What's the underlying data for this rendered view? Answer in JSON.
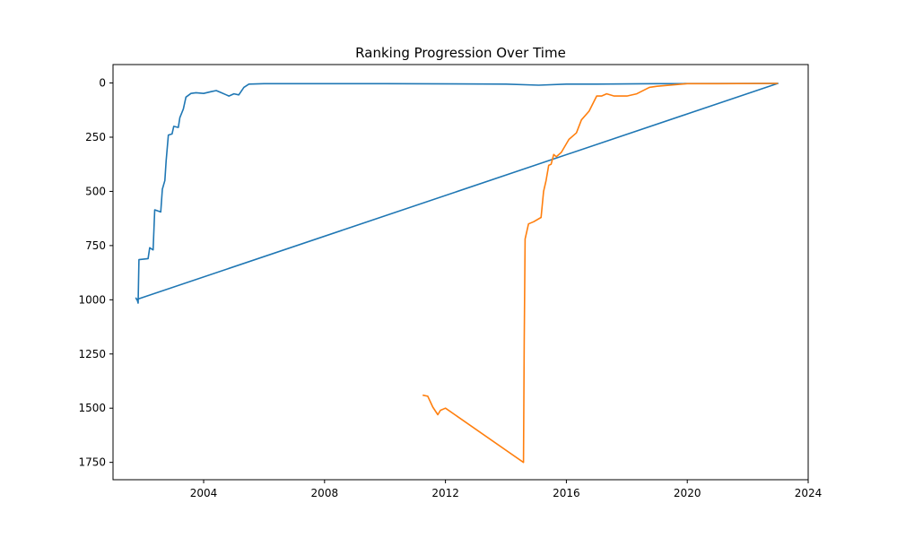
{
  "chart_data": {
    "type": "line",
    "title": "Ranking Progression Over Time",
    "xlabel": "",
    "ylabel": "",
    "x_type": "date",
    "xlim": [
      "2001-01-01",
      "2024-01-01"
    ],
    "ylim": [
      1830,
      -85
    ],
    "y_inverted": true,
    "x_ticks": [
      "2004-01-01",
      "2008-01-01",
      "2012-01-01",
      "2016-01-01",
      "2020-01-01",
      "2024-01-01"
    ],
    "x_tick_labels": [
      "2004",
      "2008",
      "2012",
      "2016",
      "2020",
      "2024"
    ],
    "y_ticks": [
      0,
      250,
      500,
      750,
      1000,
      1250,
      1500,
      1750
    ],
    "y_tick_labels": [
      "0",
      "250",
      "500",
      "750",
      "1000",
      "1250",
      "1500",
      "1750"
    ],
    "grid": false,
    "legend": "none",
    "series": [
      {
        "color": "#1f77b4",
        "points": [
          [
            "2001-10-01",
            990
          ],
          [
            "2001-10-20",
            1000
          ],
          [
            "2001-11-01",
            1015
          ],
          [
            "2001-11-10",
            815
          ],
          [
            "2002-03-01",
            810
          ],
          [
            "2002-03-20",
            760
          ],
          [
            "2002-05-01",
            770
          ],
          [
            "2002-05-20",
            585
          ],
          [
            "2002-08-01",
            595
          ],
          [
            "2002-08-20",
            490
          ],
          [
            "2002-09-20",
            450
          ],
          [
            "2002-10-05",
            360
          ],
          [
            "2002-11-01",
            240
          ],
          [
            "2002-12-15",
            235
          ],
          [
            "2003-01-05",
            200
          ],
          [
            "2003-03-01",
            205
          ],
          [
            "2003-03-20",
            160
          ],
          [
            "2003-05-01",
            120
          ],
          [
            "2003-06-01",
            65
          ],
          [
            "2003-08-01",
            48
          ],
          [
            "2003-10-01",
            45
          ],
          [
            "2004-01-01",
            48
          ],
          [
            "2004-04-01",
            40
          ],
          [
            "2004-06-01",
            35
          ],
          [
            "2004-08-01",
            45
          ],
          [
            "2004-10-01",
            55
          ],
          [
            "2004-11-01",
            60
          ],
          [
            "2005-01-01",
            50
          ],
          [
            "2005-03-01",
            55
          ],
          [
            "2005-05-01",
            20
          ],
          [
            "2005-07-01",
            5
          ],
          [
            "2006-01-01",
            3
          ],
          [
            "2010-01-01",
            3
          ],
          [
            "2014-01-01",
            5
          ],
          [
            "2015-02-01",
            10
          ],
          [
            "2016-01-01",
            5
          ],
          [
            "2017-01-01",
            5
          ],
          [
            "2019-01-01",
            3
          ],
          [
            "2022-12-31",
            2
          ],
          [
            "2001-10-05",
            1000
          ]
        ]
      },
      {
        "color": "#ff7f0e",
        "points": [
          [
            "2011-04-01",
            1440
          ],
          [
            "2011-06-01",
            1445
          ],
          [
            "2011-08-01",
            1495
          ],
          [
            "2011-10-01",
            1530
          ],
          [
            "2011-11-01",
            1510
          ],
          [
            "2012-01-01",
            1500
          ],
          [
            "2014-08-01",
            1750
          ],
          [
            "2014-08-10",
            1200
          ],
          [
            "2014-08-20",
            720
          ],
          [
            "2014-10-01",
            650
          ],
          [
            "2014-12-01",
            640
          ],
          [
            "2015-03-01",
            620
          ],
          [
            "2015-04-01",
            500
          ],
          [
            "2015-05-01",
            450
          ],
          [
            "2015-06-01",
            380
          ],
          [
            "2015-07-01",
            375
          ],
          [
            "2015-08-01",
            330
          ],
          [
            "2015-09-01",
            340
          ],
          [
            "2015-11-01",
            320
          ],
          [
            "2016-02-01",
            260
          ],
          [
            "2016-05-01",
            230
          ],
          [
            "2016-07-01",
            170
          ],
          [
            "2016-10-01",
            130
          ],
          [
            "2017-01-01",
            60
          ],
          [
            "2017-03-01",
            60
          ],
          [
            "2017-05-01",
            50
          ],
          [
            "2017-08-01",
            60
          ],
          [
            "2018-01-01",
            60
          ],
          [
            "2018-05-01",
            50
          ],
          [
            "2018-10-01",
            20
          ],
          [
            "2019-01-01",
            15
          ],
          [
            "2020-01-01",
            3
          ],
          [
            "2021-01-01",
            3
          ],
          [
            "2022-12-31",
            2
          ]
        ]
      }
    ]
  }
}
